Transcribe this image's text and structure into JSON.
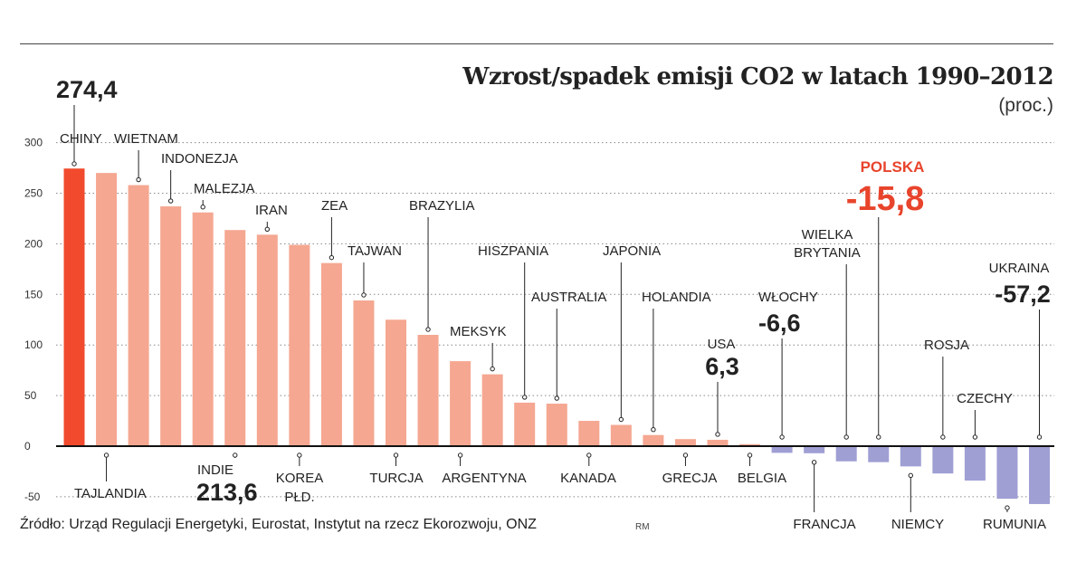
{
  "source": "Źródło: Urząd Regulacji Energetyki, Eurostat, Instytut na rzecz Ekorozwoju, ONZ",
  "credit": "RM",
  "chart_data": {
    "type": "bar",
    "title": "Wzrost/spadek emisji CO2 w latach 1990–2012",
    "unit": "(proc.)",
    "ylim": [
      -55,
      300
    ],
    "yticks": [
      300,
      250,
      200,
      150,
      100,
      50,
      0,
      -50
    ],
    "grid": true,
    "colors": {
      "highest": "#f14a2d",
      "increase": "#f5a791",
      "decrease": "#9f9fd4",
      "highlight": "#e8442c"
    },
    "bars": [
      {
        "name": "CHINY",
        "value": 274.4,
        "value_label": "274,4"
      },
      {
        "name": "TAJLANDIA",
        "value": 270
      },
      {
        "name": "WIETNAM",
        "value": 258
      },
      {
        "name": "INDONEZJA",
        "value": 237
      },
      {
        "name": "MALEZJA",
        "value": 231
      },
      {
        "name": "INDIE",
        "value": 213.6,
        "value_label": "213,6"
      },
      {
        "name": "IRAN",
        "value": 209
      },
      {
        "name": "KOREA PŁD.",
        "name_lines": [
          "KOREA",
          "PŁD."
        ],
        "value": 199
      },
      {
        "name": "ZEA",
        "value": 181
      },
      {
        "name": "TAJWAN",
        "value": 144
      },
      {
        "name": "TURCJA",
        "value": 125
      },
      {
        "name": "BRAZYLIA",
        "value": 110
      },
      {
        "name": "ARGENTYNA",
        "value": 84
      },
      {
        "name": "MEKSYK",
        "value": 71
      },
      {
        "name": "HISZPANIA",
        "value": 43
      },
      {
        "name": "AUSTRALIA",
        "value": 42
      },
      {
        "name": "KANADA",
        "value": 25
      },
      {
        "name": "JAPONIA",
        "value": 21
      },
      {
        "name": "HOLANDIA",
        "value": 11
      },
      {
        "name": "GRECJA",
        "value": 7
      },
      {
        "name": "USA",
        "value": 6.3,
        "value_label": "6,3"
      },
      {
        "name": "BELGIA",
        "value": 2
      },
      {
        "name": "WŁOCHY",
        "value": -6.6,
        "value_label": "-6,6"
      },
      {
        "name": "FRANCJA",
        "value": -7
      },
      {
        "name": "WIELKA BRYTANIA",
        "name_lines": [
          "WIELKA",
          "BRYTANIA"
        ],
        "value": -15
      },
      {
        "name": "POLSKA",
        "value": -15.8,
        "value_label": "-15,8",
        "highlight": true
      },
      {
        "name": "NIEMCY",
        "value": -20
      },
      {
        "name": "ROSJA",
        "value": -27
      },
      {
        "name": "CZECHY",
        "value": -34
      },
      {
        "name": "RUMUNIA",
        "value": -52
      },
      {
        "name": "UKRAINA",
        "value": -57.2,
        "value_label": "-57,2"
      }
    ]
  }
}
